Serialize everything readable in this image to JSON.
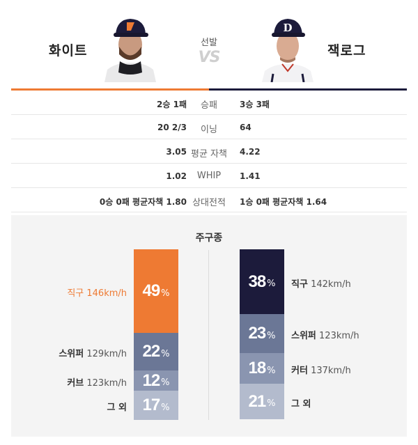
{
  "header": {
    "left_name": "화이트",
    "right_name": "잭로그",
    "center_label": "선발",
    "vs": "VS"
  },
  "stats": [
    {
      "left": "2승 1패",
      "label": "승패",
      "right": "3승 3패"
    },
    {
      "left": "20 2/3",
      "label": "이닝",
      "right": "64"
    },
    {
      "left": "3.05",
      "label": "평균 자책",
      "right": "4.22"
    },
    {
      "left": "1.02",
      "label": "WHIP",
      "right": "1.41"
    },
    {
      "left": "0승 0패 평균자책 1.80",
      "label": "상대전적",
      "right": "1승 0패 평균자책 1.64"
    }
  ],
  "pitch_mix": {
    "title": "주구종",
    "left": [
      {
        "name": "직구",
        "speed": "146km/h",
        "pct": 49,
        "color": "#ee7a33"
      },
      {
        "name": "스위퍼",
        "speed": "129km/h",
        "pct": 22,
        "color": "#6b7796"
      },
      {
        "name": "커브",
        "speed": "123km/h",
        "pct": 12,
        "color": "#8a95b0"
      },
      {
        "name": "그 외",
        "speed": "",
        "pct": 17,
        "color": "#b3bbcd"
      }
    ],
    "right": [
      {
        "name": "직구",
        "speed": "142km/h",
        "pct": 38,
        "color": "#1c1b3b"
      },
      {
        "name": "스위퍼",
        "speed": "123km/h",
        "pct": 23,
        "color": "#6b7796"
      },
      {
        "name": "커터",
        "speed": "137km/h",
        "pct": 18,
        "color": "#8a95b0"
      },
      {
        "name": "그 외",
        "speed": "",
        "pct": 21,
        "color": "#b3bbcd"
      }
    ],
    "pct_sign": "%"
  },
  "colors": {
    "left_team": "#ee7a33",
    "right_team": "#1c1b3b"
  }
}
